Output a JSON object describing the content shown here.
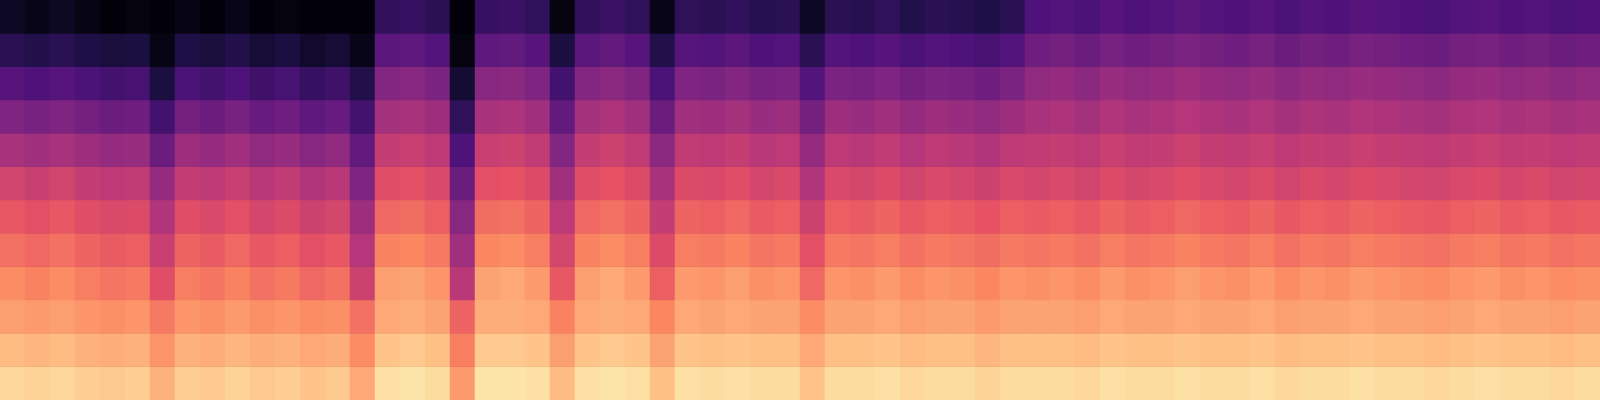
{
  "chart_data": {
    "type": "heatmap",
    "tick_labels": false,
    "zlim": [
      0,
      100
    ],
    "cells": [
      [
        92,
        91,
        92,
        90,
        89,
        90,
        84,
        90,
        89,
        91,
        89,
        90,
        88,
        89,
        82,
        94,
        95,
        93,
        79,
        95,
        95,
        94,
        86,
        94,
        95,
        94,
        87,
        94,
        93,
        94,
        93,
        93,
        88,
        93,
        93,
        94,
        92,
        93,
        93,
        91,
        93,
        93,
        93,
        92,
        94,
        93,
        93,
        94,
        93,
        93,
        94,
        92,
        93,
        93,
        94,
        93,
        93,
        92,
        93,
        94,
        93,
        93,
        92,
        93
      ],
      [
        86,
        85,
        86,
        84,
        83,
        84,
        78,
        84,
        83,
        85,
        83,
        84,
        82,
        83,
        76,
        88,
        89,
        87,
        73,
        89,
        89,
        88,
        80,
        88,
        89,
        88,
        81,
        88,
        87,
        88,
        87,
        87,
        82,
        87,
        87,
        88,
        86,
        87,
        87,
        85,
        87,
        87,
        87,
        86,
        88,
        87,
        87,
        88,
        87,
        87,
        88,
        86,
        87,
        87,
        88,
        87,
        87,
        86,
        87,
        88,
        87,
        87,
        86,
        87
      ],
      [
        80,
        79,
        80,
        78,
        77,
        78,
        72,
        78,
        77,
        79,
        77,
        78,
        76,
        77,
        70,
        82,
        83,
        81,
        67,
        83,
        83,
        82,
        74,
        82,
        83,
        82,
        75,
        82,
        81,
        82,
        81,
        81,
        76,
        81,
        81,
        82,
        80,
        81,
        81,
        79,
        81,
        81,
        81,
        80,
        82,
        81,
        81,
        82,
        81,
        81,
        82,
        80,
        81,
        81,
        82,
        81,
        81,
        80,
        81,
        82,
        81,
        81,
        80,
        81
      ],
      [
        76,
        74,
        76,
        73,
        71,
        72,
        61,
        73,
        71,
        74,
        70,
        72,
        68,
        70,
        56,
        80,
        81,
        78,
        51,
        81,
        82,
        79,
        64,
        80,
        82,
        79,
        66,
        79,
        78,
        80,
        77,
        78,
        68,
        78,
        77,
        79,
        76,
        78,
        77,
        75,
        78,
        77,
        78,
        76,
        79,
        77,
        78,
        80,
        78,
        77,
        79,
        76,
        78,
        77,
        79,
        78,
        77,
        76,
        78,
        79,
        77,
        78,
        76,
        77
      ],
      [
        70,
        68,
        70,
        67,
        65,
        66,
        55,
        67,
        65,
        68,
        64,
        66,
        62,
        64,
        50,
        74,
        75,
        72,
        45,
        75,
        76,
        73,
        58,
        74,
        76,
        73,
        60,
        73,
        72,
        74,
        71,
        72,
        62,
        72,
        71,
        73,
        70,
        72,
        71,
        69,
        72,
        71,
        72,
        70,
        73,
        71,
        72,
        74,
        72,
        71,
        73,
        70,
        72,
        71,
        73,
        72,
        71,
        70,
        72,
        73,
        71,
        72,
        70,
        71
      ],
      [
        64,
        62,
        64,
        61,
        59,
        60,
        49,
        61,
        59,
        62,
        58,
        60,
        56,
        58,
        44,
        68,
        69,
        66,
        39,
        69,
        70,
        67,
        52,
        68,
        70,
        67,
        54,
        67,
        66,
        68,
        65,
        66,
        56,
        66,
        65,
        67,
        64,
        66,
        65,
        63,
        66,
        65,
        66,
        64,
        67,
        65,
        66,
        68,
        66,
        65,
        67,
        64,
        66,
        65,
        67,
        66,
        65,
        64,
        66,
        67,
        65,
        66,
        64,
        65
      ],
      [
        57,
        55,
        57,
        54,
        52,
        53,
        42,
        54,
        52,
        55,
        51,
        53,
        49,
        51,
        37,
        61,
        62,
        59,
        32,
        62,
        63,
        60,
        45,
        61,
        63,
        60,
        47,
        60,
        59,
        61,
        58,
        59,
        49,
        59,
        58,
        60,
        57,
        59,
        58,
        56,
        59,
        58,
        59,
        57,
        60,
        58,
        59,
        61,
        59,
        58,
        60,
        57,
        59,
        58,
        60,
        59,
        58,
        57,
        59,
        60,
        58,
        59,
        57,
        58
      ],
      [
        47,
        45,
        47,
        44,
        42,
        43,
        32,
        44,
        42,
        45,
        41,
        43,
        39,
        41,
        30,
        54,
        55,
        52,
        25,
        55,
        56,
        53,
        38,
        54,
        56,
        53,
        40,
        53,
        52,
        54,
        51,
        52,
        42,
        52,
        51,
        53,
        50,
        52,
        51,
        49,
        52,
        53,
        54,
        52,
        55,
        53,
        54,
        56,
        54,
        53,
        55,
        52,
        54,
        53,
        55,
        54,
        53,
        52,
        54,
        55,
        53,
        54,
        52,
        53
      ],
      [
        37,
        35,
        37,
        34,
        32,
        33,
        22,
        34,
        32,
        35,
        31,
        33,
        29,
        31,
        22,
        46,
        47,
        44,
        17,
        47,
        48,
        45,
        30,
        46,
        48,
        45,
        32,
        45,
        44,
        46,
        43,
        44,
        34,
        44,
        43,
        45,
        42,
        44,
        43,
        41,
        44,
        47,
        48,
        46,
        49,
        47,
        48,
        50,
        48,
        47,
        49,
        46,
        48,
        47,
        49,
        48,
        47,
        46,
        48,
        49,
        47,
        48,
        46,
        47
      ],
      [
        27,
        25,
        27,
        24,
        22,
        23,
        12,
        24,
        22,
        25,
        21,
        23,
        19,
        21,
        14,
        38,
        39,
        36,
        9,
        39,
        40,
        37,
        22,
        38,
        40,
        37,
        24,
        37,
        36,
        38,
        35,
        36,
        26,
        36,
        35,
        37,
        34,
        36,
        35,
        33,
        36,
        41,
        42,
        40,
        43,
        41,
        42,
        44,
        42,
        41,
        43,
        40,
        42,
        41,
        43,
        42,
        41,
        40,
        42,
        43,
        41,
        42,
        40,
        41
      ],
      [
        16,
        14,
        16,
        13,
        11,
        12,
        3,
        13,
        11,
        14,
        10,
        12,
        8,
        10,
        4,
        28,
        29,
        26,
        2,
        29,
        30,
        27,
        12,
        28,
        30,
        27,
        14,
        27,
        26,
        28,
        25,
        26,
        16,
        26,
        25,
        27,
        24,
        26,
        25,
        23,
        26,
        33,
        34,
        32,
        35,
        33,
        34,
        36,
        34,
        33,
        35,
        32,
        34,
        33,
        35,
        34,
        33,
        32,
        34,
        35,
        33,
        34,
        32,
        33
      ],
      [
        6,
        4,
        6,
        3,
        1,
        2,
        1,
        3,
        1,
        4,
        1,
        2,
        1,
        1,
        1,
        18,
        19,
        16,
        1,
        19,
        20,
        17,
        2,
        18,
        20,
        17,
        4,
        17,
        16,
        18,
        15,
        16,
        6,
        16,
        15,
        17,
        14,
        16,
        15,
        13,
        16,
        25,
        26,
        24,
        27,
        25,
        26,
        28,
        26,
        25,
        27,
        24,
        26,
        25,
        27,
        26,
        25,
        24,
        26,
        27,
        25,
        26,
        24,
        25
      ]
    ]
  }
}
